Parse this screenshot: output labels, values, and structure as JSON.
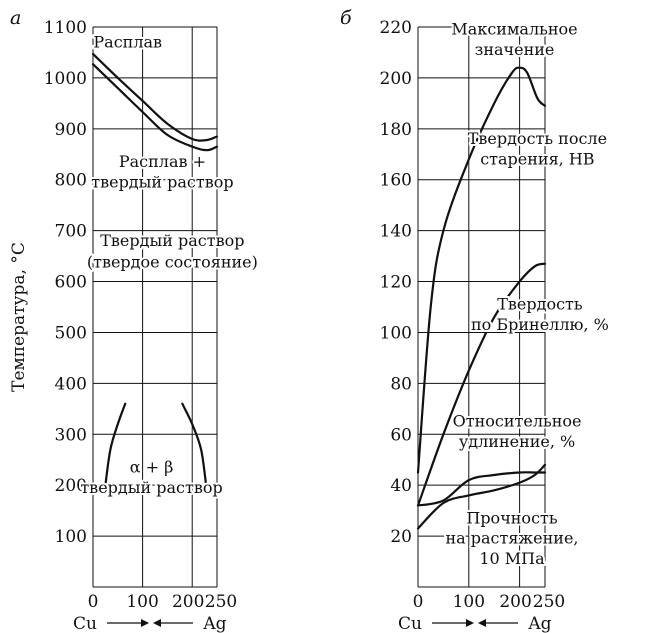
{
  "chart_data": [
    {
      "panel": "а",
      "type": "line",
      "ylabel": "Температура, °C",
      "xlim": [
        0,
        250
      ],
      "ylim": [
        0,
        1100
      ],
      "yticks": [
        100,
        200,
        300,
        400,
        500,
        600,
        700,
        800,
        900,
        1000,
        1100
      ],
      "xticks": [
        0,
        100,
        200,
        250
      ],
      "x_end_labels": {
        "left": "Cu",
        "right": "Ag"
      },
      "grid": true,
      "series": [
        {
          "x": [
            0,
            50,
            100,
            150,
            200,
            230,
            250
          ],
          "y": [
            1047,
            1000,
            955,
            910,
            880,
            878,
            885
          ]
        },
        {
          "x": [
            0,
            50,
            100,
            150,
            200,
            230,
            250
          ],
          "y": [
            1027,
            980,
            933,
            888,
            865,
            858,
            865
          ]
        },
        {
          "x": [
            25,
            35,
            50,
            65
          ],
          "y": [
            200,
            270,
            320,
            360
          ]
        },
        {
          "x": [
            180,
            200,
            218,
            228
          ],
          "y": [
            360,
            320,
            270,
            200
          ]
        }
      ],
      "annotations": [
        {
          "text": "Расплав",
          "x": 70,
          "y": 1060
        },
        {
          "text": "Расплав +",
          "x": 140,
          "y": 825
        },
        {
          "text": "твердый раствор",
          "x": 140,
          "y": 785
        },
        {
          "text": "Твердый раствор",
          "x": 160,
          "y": 670
        },
        {
          "text": "(твердое состояние)",
          "x": 160,
          "y": 628
        },
        {
          "text": "α + β",
          "x": 118,
          "y": 225
        },
        {
          "text": "твердый раствор",
          "x": 118,
          "y": 185
        }
      ]
    },
    {
      "panel": "б",
      "type": "line",
      "xlim": [
        0,
        250
      ],
      "ylim": [
        0,
        220
      ],
      "yticks": [
        20,
        40,
        60,
        80,
        100,
        120,
        140,
        160,
        180,
        200,
        220
      ],
      "xticks": [
        0,
        100,
        200,
        250
      ],
      "x_end_labels": {
        "left": "Cu",
        "right": "Ag"
      },
      "grid": true,
      "series": [
        {
          "x": [
            0,
            25,
            50,
            100,
            150,
            185,
            200,
            215,
            235,
            250
          ],
          "y": [
            45,
            110,
            140,
            168,
            190,
            202,
            204,
            202,
            192,
            189
          ]
        },
        {
          "x": [
            0,
            50,
            100,
            150,
            200,
            230,
            250
          ],
          "y": [
            32,
            60,
            85,
            106,
            120,
            126,
            127
          ]
        },
        {
          "x": [
            0,
            50,
            100,
            150,
            200,
            230,
            250
          ],
          "y": [
            32,
            34,
            42,
            44,
            45,
            45,
            45
          ]
        },
        {
          "x": [
            0,
            50,
            100,
            150,
            200,
            230,
            250
          ],
          "y": [
            23,
            33,
            36,
            38,
            41,
            44,
            48
          ]
        }
      ],
      "annotations": [
        {
          "text": "Максимальное",
          "x": 190,
          "y": 217
        },
        {
          "text": "значение",
          "x": 190,
          "y": 209
        },
        {
          "text": "Твердость после",
          "x": 235,
          "y": 174
        },
        {
          "text": "старения, НВ",
          "x": 235,
          "y": 166
        },
        {
          "text": "Твердость",
          "x": 240,
          "y": 109
        },
        {
          "text": "по Бринеллю, %",
          "x": 240,
          "y": 101
        },
        {
          "text": "Относительное",
          "x": 195,
          "y": 63
        },
        {
          "text": "удлинение, %",
          "x": 195,
          "y": 55
        },
        {
          "text": "Прочность",
          "x": 185,
          "y": 25
        },
        {
          "text": "на растяжение,",
          "x": 185,
          "y": 17
        },
        {
          "text": "10 МПа",
          "x": 185,
          "y": 9
        }
      ]
    }
  ]
}
